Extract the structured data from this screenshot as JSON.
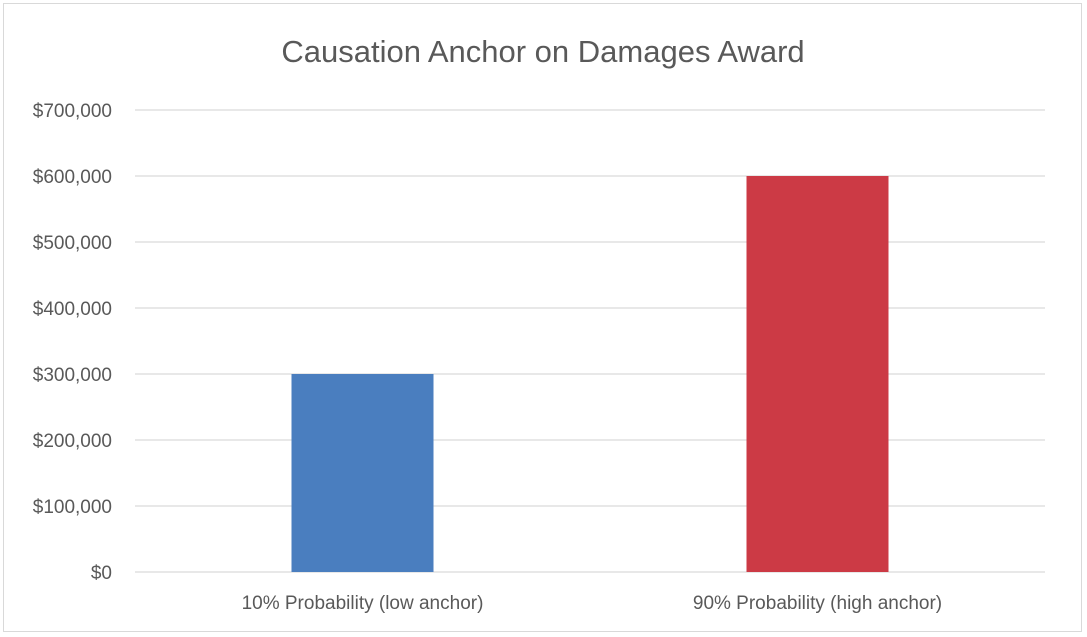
{
  "chart_data": {
    "type": "bar",
    "title": "Causation Anchor on Damages Award",
    "xlabel": "",
    "ylabel": "",
    "categories": [
      "10% Probability  (low anchor)",
      "90% Probability  (high anchor)"
    ],
    "values": [
      300000,
      600000
    ],
    "bar_colors": [
      "#4a7ebf",
      "#cc3a45"
    ],
    "ylim": [
      0,
      700000
    ],
    "yticks": [
      0,
      100000,
      200000,
      300000,
      400000,
      500000,
      600000,
      700000
    ],
    "ytick_labels": [
      "$0",
      "$100,000",
      "$200,000",
      "$300,000",
      "$400,000",
      "$500,000",
      "$600,000",
      "$700,000"
    ],
    "grid": true,
    "gridline_color": "#d9d9d9",
    "legend": "none"
  }
}
